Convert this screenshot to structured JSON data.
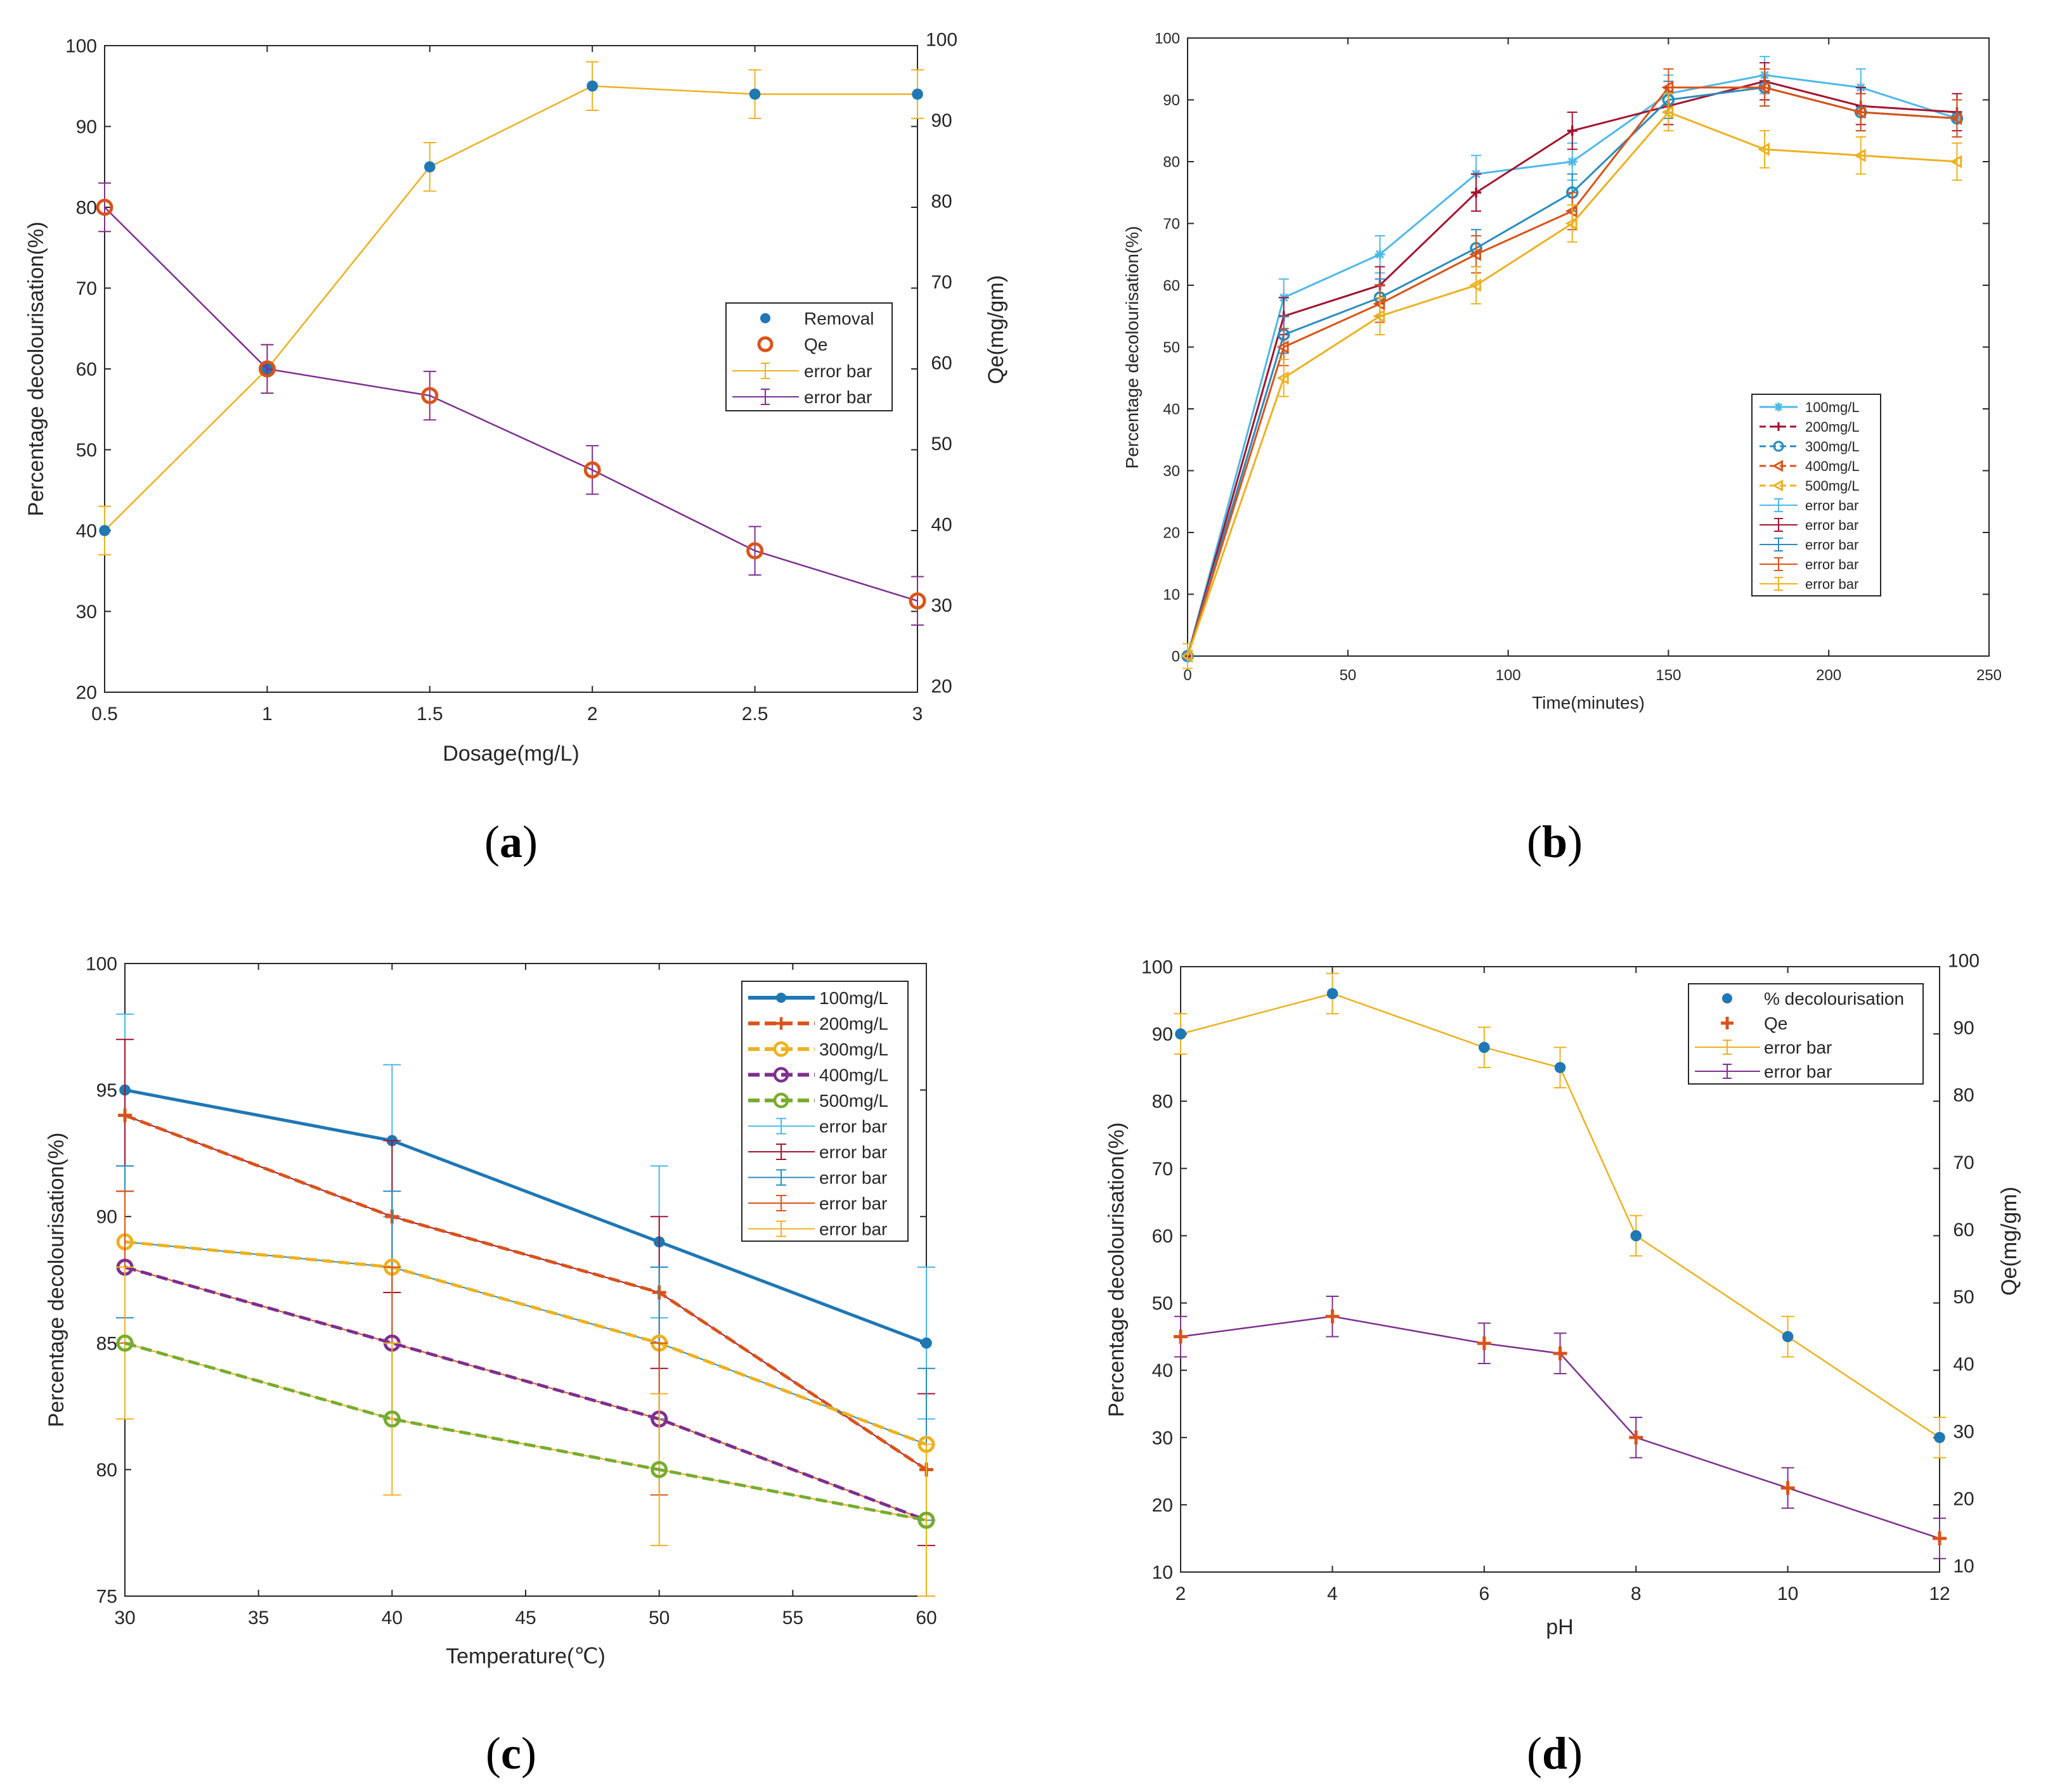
{
  "colors": {
    "blue": "#1f77b4",
    "blue_light": "#4db8e8",
    "orange": "#d95319",
    "yellow": "#edb120",
    "purple": "#7e2f8e",
    "green": "#77ac30",
    "red_dark": "#a2142f",
    "teal": "#2b8cbe"
  },
  "chart_data": [
    {
      "id": "a",
      "type": "line",
      "caption": "a",
      "xlabel": "Dosage(mg/L)",
      "ylabel": "Percentage decolourisation(%)",
      "ylabel_right": "Qe(mg/gm)",
      "xlim": [
        0.5,
        3
      ],
      "ylim": [
        20,
        100
      ],
      "ylim_right": [
        20,
        100
      ],
      "x_ticks": [
        "0.5",
        "1",
        "1.5",
        "2",
        "2.5",
        "3"
      ],
      "y_ticks": [
        "20",
        "30",
        "40",
        "50",
        "60",
        "70",
        "80",
        "90",
        "100"
      ],
      "y_ticks_right": [
        "20",
        "30",
        "40",
        "50",
        "60",
        "70",
        "80",
        "90",
        "100"
      ],
      "x": [
        0.5,
        1,
        1.5,
        2,
        2.5,
        3
      ],
      "series": [
        {
          "name": "Removal",
          "axis": "left",
          "values": [
            40,
            60,
            85,
            95,
            94,
            94
          ],
          "error": [
            3,
            3,
            3,
            3,
            3,
            3
          ],
          "color": "#edb120",
          "marker": "dot",
          "marker_color": "#1f77b4"
        },
        {
          "name": "Qe",
          "axis": "right",
          "values": [
            80,
            60,
            56.7,
            47.5,
            37.5,
            31.3
          ],
          "error": [
            3,
            3,
            3,
            3,
            3,
            3
          ],
          "color": "#7e2f8e",
          "marker": "circle",
          "marker_color": "#d95319"
        }
      ],
      "legend": [
        "Removal",
        "Qe",
        "error bar",
        "error bar"
      ],
      "legend_location": "right"
    },
    {
      "id": "b",
      "type": "line",
      "caption": "b",
      "xlabel": "Time(minutes)",
      "ylabel": "Percentage decolourisation(%)",
      "xlim": [
        0,
        250
      ],
      "ylim": [
        0,
        100
      ],
      "x_ticks": [
        "0",
        "50",
        "100",
        "150",
        "200",
        "250"
      ],
      "y_ticks": [
        "0",
        "10",
        "20",
        "30",
        "40",
        "50",
        "60",
        "70",
        "80",
        "90",
        "100"
      ],
      "x": [
        0,
        30,
        60,
        90,
        120,
        150,
        180,
        210,
        240
      ],
      "series": [
        {
          "name": "100mg/L",
          "values": [
            0,
            58,
            65,
            78,
            80,
            91,
            94,
            92,
            87
          ],
          "error": [
            2,
            3,
            3,
            3,
            3,
            3,
            3,
            3,
            3
          ],
          "color": "#4db8e8",
          "marker": "star"
        },
        {
          "name": "200mg/L",
          "values": [
            0,
            55,
            60,
            75,
            85,
            89,
            93,
            89,
            88
          ],
          "error": [
            2,
            3,
            3,
            3,
            3,
            3,
            3,
            3,
            3
          ],
          "color": "#a2142f",
          "marker": "plus"
        },
        {
          "name": "300mg/L",
          "values": [
            0,
            52,
            58,
            66,
            75,
            90,
            92,
            88,
            87
          ],
          "error": [
            2,
            3,
            3,
            3,
            3,
            3,
            3,
            3,
            3
          ],
          "color": "#2b8cbe",
          "marker": "circle"
        },
        {
          "name": "400mg/L",
          "values": [
            0,
            50,
            57,
            65,
            72,
            92,
            92,
            88,
            87
          ],
          "error": [
            2,
            3,
            3,
            3,
            3,
            3,
            3,
            3,
            3
          ],
          "color": "#d95319",
          "marker": "triangle"
        },
        {
          "name": "500mg/L",
          "values": [
            0,
            45,
            55,
            60,
            70,
            88,
            82,
            81,
            80
          ],
          "error": [
            2,
            3,
            3,
            3,
            3,
            3,
            3,
            3,
            3
          ],
          "color": "#edb120",
          "marker": "triangle"
        }
      ],
      "legend": [
        "100mg/L",
        "200mg/L",
        "300mg/L",
        "400mg/L",
        "500mg/L",
        "error bar",
        "error bar",
        "error bar",
        "error bar",
        "error bar"
      ],
      "legend_location": "bottom-right"
    },
    {
      "id": "c",
      "type": "line",
      "caption": "c",
      "xlabel": "Temperature(℃)",
      "ylabel": "Percentage decolourisation(%)",
      "xlim": [
        30,
        60
      ],
      "ylim": [
        75,
        100
      ],
      "x_ticks": [
        "30",
        "35",
        "40",
        "45",
        "50",
        "55",
        "60"
      ],
      "y_ticks": [
        "75",
        "80",
        "85",
        "90",
        "95",
        "100"
      ],
      "x": [
        30,
        40,
        50,
        60
      ],
      "series": [
        {
          "name": "100mg/L",
          "values": [
            95,
            93,
            89,
            85
          ],
          "error": [
            3,
            3,
            3,
            3
          ],
          "color": "#1f77b4",
          "marker": "dot",
          "errcolor": "#4db8e8"
        },
        {
          "name": "200mg/L",
          "values": [
            94,
            90,
            87,
            80
          ],
          "error": [
            3,
            3,
            3,
            3
          ],
          "color": "#d95319",
          "marker": "plus",
          "errcolor": "#a2142f"
        },
        {
          "name": "300mg/L",
          "values": [
            89,
            88,
            85,
            81
          ],
          "error": [
            3,
            3,
            3,
            3
          ],
          "color": "#edb120",
          "marker": "circle",
          "errcolor": "#2b8cbe"
        },
        {
          "name": "400mg/L",
          "values": [
            88,
            85,
            82,
            78
          ],
          "error": [
            3,
            3,
            3,
            3
          ],
          "color": "#7e2f8e",
          "marker": "circle",
          "errcolor": "#d95319"
        },
        {
          "name": "500mg/L",
          "values": [
            85,
            82,
            80,
            78
          ],
          "error": [
            3,
            3,
            3,
            3
          ],
          "color": "#77ac30",
          "marker": "circle",
          "errcolor": "#edb120"
        }
      ],
      "legend": [
        "100mg/L",
        "200mg/L",
        "300mg/L",
        "400mg/L",
        "500mg/L",
        "error bar",
        "error bar",
        "error bar",
        "error bar",
        "error bar"
      ],
      "legend_location": "top-right"
    },
    {
      "id": "d",
      "type": "line",
      "caption": "d",
      "xlabel": "pH",
      "ylabel": "Percentage decolourisation(%)",
      "ylabel_right": "Qe(mg/gm)",
      "xlim": [
        2,
        12
      ],
      "ylim": [
        10,
        100
      ],
      "ylim_right": [
        10,
        100
      ],
      "x_ticks": [
        "2",
        "4",
        "6",
        "8",
        "10",
        "12"
      ],
      "y_ticks": [
        "10",
        "20",
        "30",
        "40",
        "50",
        "60",
        "70",
        "80",
        "90",
        "100"
      ],
      "y_ticks_right": [
        "10",
        "20",
        "30",
        "40",
        "50",
        "60",
        "70",
        "80",
        "90",
        "100"
      ],
      "x": [
        2,
        4,
        6,
        7,
        8,
        10,
        12
      ],
      "series": [
        {
          "name": "% decolourisation",
          "axis": "left",
          "values": [
            90,
            96,
            88,
            85,
            60,
            45,
            30
          ],
          "error": [
            3,
            3,
            3,
            3,
            3,
            3,
            3
          ],
          "color": "#edb120",
          "marker": "dot",
          "marker_color": "#1f77b4"
        },
        {
          "name": "Qe",
          "axis": "right",
          "values": [
            45,
            48,
            44,
            42.5,
            30,
            22.5,
            15
          ],
          "error": [
            3,
            3,
            3,
            3,
            3,
            3,
            3
          ],
          "color": "#7e2f8e",
          "marker": "plus",
          "marker_color": "#d95319"
        }
      ],
      "legend": [
        "% decolourisation",
        "Qe",
        "error bar",
        "error bar"
      ],
      "legend_location": "top-right"
    }
  ]
}
